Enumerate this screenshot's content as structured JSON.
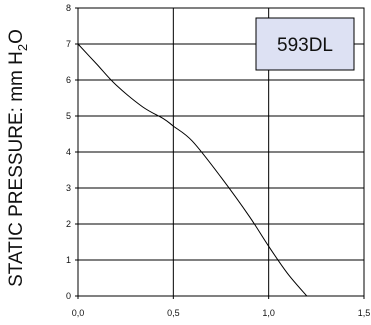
{
  "chart_data": {
    "type": "line",
    "title": "",
    "xlabel": "",
    "ylabel": "STATIC PRESSURE: mm H",
    "ylabel_subscript": "2",
    "ylabel_suffix": "O",
    "xlim": [
      0,
      1.5
    ],
    "ylim": [
      0,
      8
    ],
    "x_ticks": [
      0,
      0.5,
      1.0,
      1.5
    ],
    "x_tick_labels": [
      "0,0",
      "0,5",
      "1,0",
      "1,5"
    ],
    "y_ticks": [
      0,
      1,
      2,
      3,
      4,
      5,
      6,
      7,
      8
    ],
    "y_tick_labels": [
      "0",
      "1",
      "2",
      "3",
      "4",
      "5",
      "6",
      "7",
      "8"
    ],
    "grid": true,
    "series": [
      {
        "name": "593DL",
        "color": "#000000",
        "x": [
          0.0,
          0.1,
          0.2,
          0.34,
          0.45,
          0.5,
          0.6,
          0.75,
          0.9,
          1.0,
          1.1,
          1.2
        ],
        "y": [
          7.0,
          6.43,
          5.86,
          5.25,
          4.92,
          4.72,
          4.3,
          3.3,
          2.2,
          1.38,
          0.62,
          0.0
        ]
      }
    ],
    "legend": {
      "label": "593DL",
      "position": "top-right",
      "fill": "#dde1f3",
      "border": "#000000"
    }
  }
}
